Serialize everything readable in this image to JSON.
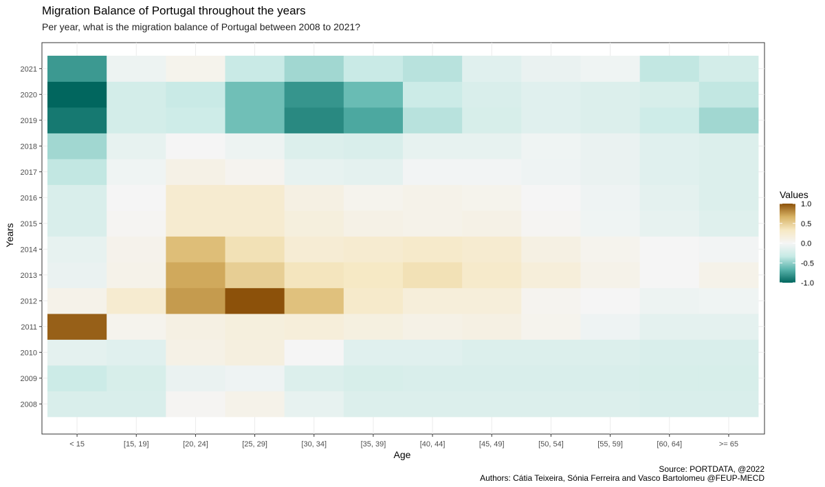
{
  "chart_data": {
    "type": "heatmap",
    "title": "Migration Balance of Portugal throughout the years",
    "subtitle": "Per year, what is the migration balance of Portugal between 2008 to 2021?",
    "xlabel": "Age",
    "ylabel": "Years",
    "x": [
      "< 15",
      "[15, 19]",
      "[20, 24]",
      "[25, 29]",
      "[30, 34]",
      "[35, 39]",
      "[40, 44]",
      "[45, 49]",
      "[50, 54]",
      "[55, 59]",
      "[60, 64]",
      ">= 65"
    ],
    "y": [
      "2008",
      "2009",
      "2010",
      "2011",
      "2012",
      "2013",
      "2014",
      "2015",
      "2016",
      "2017",
      "2018",
      "2019",
      "2020",
      "2021"
    ],
    "values": [
      [
        -0.2,
        -0.2,
        0.02,
        0.08,
        -0.1,
        -0.18,
        -0.18,
        -0.18,
        -0.18,
        -0.18,
        -0.2,
        -0.2
      ],
      [
        -0.3,
        -0.22,
        -0.08,
        -0.05,
        -0.18,
        -0.22,
        -0.2,
        -0.2,
        -0.2,
        -0.2,
        -0.22,
        -0.22
      ],
      [
        -0.12,
        -0.15,
        0.1,
        0.15,
        0.0,
        -0.15,
        -0.15,
        -0.18,
        -0.18,
        -0.18,
        -0.2,
        -0.2
      ],
      [
        0.95,
        0.05,
        0.12,
        0.16,
        0.18,
        0.14,
        0.1,
        0.12,
        0.05,
        -0.05,
        -0.12,
        -0.12
      ],
      [
        0.08,
        0.25,
        0.75,
        1.0,
        0.58,
        0.28,
        0.18,
        0.18,
        0.04,
        0.0,
        -0.06,
        -0.04
      ],
      [
        -0.08,
        0.08,
        0.7,
        0.5,
        0.35,
        0.32,
        0.38,
        0.28,
        0.18,
        0.08,
        0.0,
        0.08
      ],
      [
        -0.1,
        0.07,
        0.6,
        0.38,
        0.22,
        0.25,
        0.28,
        0.25,
        0.12,
        0.05,
        0.0,
        -0.02
      ],
      [
        -0.2,
        0.02,
        0.25,
        0.25,
        0.16,
        0.1,
        0.08,
        0.1,
        0.02,
        -0.04,
        -0.1,
        -0.16
      ],
      [
        -0.2,
        0.0,
        0.25,
        0.25,
        0.12,
        0.05,
        0.08,
        0.06,
        0.0,
        -0.05,
        -0.12,
        -0.18
      ],
      [
        -0.35,
        -0.04,
        0.1,
        0.04,
        -0.1,
        -0.12,
        -0.02,
        -0.02,
        -0.05,
        -0.08,
        -0.15,
        -0.18
      ],
      [
        -0.45,
        -0.1,
        0.0,
        -0.06,
        -0.18,
        -0.2,
        -0.1,
        -0.1,
        -0.04,
        -0.08,
        -0.15,
        -0.18
      ],
      [
        -0.92,
        -0.25,
        -0.28,
        -0.6,
        -0.85,
        -0.72,
        -0.38,
        -0.22,
        -0.15,
        -0.18,
        -0.28,
        -0.45
      ],
      [
        -1.0,
        -0.25,
        -0.32,
        -0.6,
        -0.8,
        -0.62,
        -0.3,
        -0.2,
        -0.15,
        -0.18,
        -0.22,
        -0.35
      ],
      [
        -0.78,
        -0.06,
        0.06,
        -0.32,
        -0.45,
        -0.32,
        -0.38,
        -0.15,
        -0.08,
        -0.04,
        -0.35,
        -0.25
      ]
    ],
    "xlim": [
      "< 15",
      ">= 65"
    ],
    "ylim": [
      "2008",
      "2021"
    ],
    "color_scale": {
      "title": "Values",
      "min": -1.0,
      "max": 1.0,
      "ticks": [
        "1.0",
        "0.5",
        "0.0",
        "-0.5",
        "-1.0"
      ],
      "tick_values": [
        1.0,
        0.5,
        0.0,
        -0.5,
        -1.0
      ],
      "colors": [
        "#01665e",
        "#5ab4ac",
        "#c7eae5",
        "#f5f5f5",
        "#f6e8c3",
        "#d8b365",
        "#8c510a"
      ]
    },
    "grid": true,
    "legend": "right",
    "panel_border": "#333333",
    "grid_color": "#ebebeb"
  },
  "captions": {
    "source": "Source: PORTDATA, @2022",
    "authors": "Authors: Cátia Teixeira, Sónia Ferreira and Vasco Bartolomeu @FEUP-MECD"
  }
}
